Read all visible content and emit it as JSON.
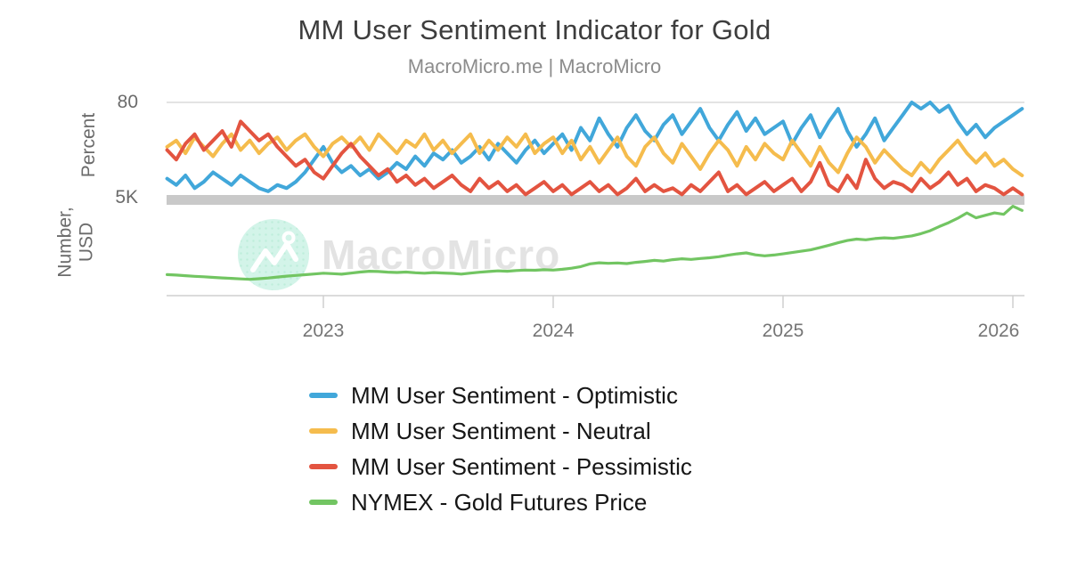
{
  "chart_data": {
    "type": "line",
    "title": "MM User Sentiment Indicator for Gold",
    "subtitle": "MacroMicro.me | MacroMicro",
    "grid": "horizontal-only",
    "legend_position": "bottom-left",
    "x_tick_labels": [
      "2023",
      "2024",
      "2025",
      "2026"
    ],
    "x_range_decimal_years": [
      2022.32,
      2026.04
    ],
    "y_axes": {
      "percent": {
        "label": "Percent",
        "shown_tick": "80",
        "tick_value": 80,
        "approx_range": [
          50,
          82
        ]
      },
      "usd": {
        "label_line1": "Number,",
        "label_line2": "USD",
        "shown_tick": "5K",
        "tick_value": 5000,
        "approx_range": [
          1000,
          5000
        ]
      }
    },
    "watermark": {
      "text": "MacroMicro",
      "logo": "macromicro-mountain-logo"
    },
    "x": [
      2022.32,
      2022.36,
      2022.4,
      2022.44,
      2022.48,
      2022.52,
      2022.56,
      2022.6,
      2022.64,
      2022.68,
      2022.72,
      2022.76,
      2022.8,
      2022.84,
      2022.88,
      2022.92,
      2022.96,
      2023.0,
      2023.04,
      2023.08,
      2023.12,
      2023.16,
      2023.2,
      2023.24,
      2023.28,
      2023.32,
      2023.36,
      2023.4,
      2023.44,
      2023.48,
      2023.52,
      2023.56,
      2023.6,
      2023.64,
      2023.68,
      2023.72,
      2023.76,
      2023.8,
      2023.84,
      2023.88,
      2023.92,
      2023.96,
      2024.0,
      2024.04,
      2024.08,
      2024.12,
      2024.16,
      2024.2,
      2024.24,
      2024.28,
      2024.32,
      2024.36,
      2024.4,
      2024.44,
      2024.48,
      2024.52,
      2024.56,
      2024.6,
      2024.64,
      2024.68,
      2024.72,
      2024.76,
      2024.8,
      2024.84,
      2024.88,
      2024.92,
      2024.96,
      2025.0,
      2025.04,
      2025.08,
      2025.12,
      2025.16,
      2025.2,
      2025.24,
      2025.28,
      2025.32,
      2025.36,
      2025.4,
      2025.44,
      2025.48,
      2025.52,
      2025.56,
      2025.6,
      2025.64,
      2025.68,
      2025.72,
      2025.76,
      2025.8,
      2025.84,
      2025.88,
      2025.92,
      2025.96,
      2026.0,
      2026.04
    ],
    "series": [
      {
        "name": "MM User Sentiment - Optimistic",
        "axis": "percent",
        "unit": "%",
        "color": "#41a7da",
        "values": [
          56,
          54,
          57,
          53,
          55,
          58,
          56,
          54,
          57,
          55,
          53,
          52,
          54,
          53,
          55,
          58,
          62,
          66,
          61,
          58,
          60,
          57,
          59,
          56,
          58,
          61,
          59,
          63,
          60,
          64,
          62,
          65,
          61,
          63,
          66,
          62,
          67,
          64,
          61,
          65,
          68,
          64,
          67,
          70,
          65,
          72,
          68,
          75,
          70,
          66,
          72,
          76,
          71,
          68,
          73,
          76,
          70,
          74,
          78,
          72,
          68,
          73,
          77,
          71,
          75,
          70,
          72,
          74,
          67,
          72,
          76,
          69,
          74,
          78,
          71,
          66,
          70,
          75,
          68,
          72,
          76,
          80,
          78,
          80,
          77,
          79,
          74,
          70,
          73,
          69,
          72,
          74,
          76,
          78
        ]
      },
      {
        "name": "MM User Sentiment - Neutral",
        "axis": "percent",
        "unit": "%",
        "color": "#f5bc4d",
        "values": [
          66,
          68,
          64,
          69,
          66,
          63,
          67,
          70,
          65,
          68,
          64,
          67,
          69,
          65,
          68,
          70,
          66,
          63,
          67,
          69,
          66,
          69,
          65,
          70,
          67,
          64,
          68,
          66,
          70,
          65,
          68,
          64,
          67,
          70,
          64,
          68,
          65,
          69,
          66,
          70,
          64,
          67,
          69,
          64,
          68,
          62,
          66,
          61,
          65,
          69,
          63,
          60,
          66,
          69,
          64,
          61,
          67,
          63,
          59,
          64,
          68,
          65,
          60,
          66,
          62,
          67,
          64,
          62,
          68,
          64,
          60,
          66,
          61,
          58,
          64,
          69,
          66,
          61,
          65,
          62,
          59,
          57,
          61,
          58,
          62,
          65,
          68,
          64,
          61,
          64,
          60,
          62,
          59,
          57
        ]
      },
      {
        "name": "MM User Sentiment - Pessimistic",
        "axis": "percent",
        "unit": "%",
        "color": "#e35440",
        "values": [
          65,
          62,
          67,
          70,
          65,
          68,
          71,
          66,
          74,
          71,
          68,
          70,
          66,
          63,
          60,
          62,
          58,
          56,
          60,
          64,
          67,
          63,
          60,
          57,
          59,
          55,
          57,
          54,
          56,
          53,
          55,
          57,
          54,
          52,
          56,
          53,
          55,
          52,
          54,
          51,
          53,
          55,
          52,
          54,
          51,
          53,
          55,
          52,
          54,
          51,
          53,
          56,
          52,
          54,
          52,
          53,
          51,
          54,
          52,
          55,
          58,
          52,
          54,
          51,
          53,
          55,
          52,
          54,
          56,
          52,
          55,
          61,
          54,
          52,
          57,
          53,
          62,
          56,
          53,
          55,
          54,
          52,
          56,
          53,
          55,
          58,
          54,
          56,
          52,
          54,
          53,
          51,
          53,
          51
        ]
      },
      {
        "name": "NYMEX - Gold Futures Price",
        "axis": "usd",
        "unit": "USD",
        "color": "#72c562",
        "values": [
          1860,
          1840,
          1815,
          1790,
          1770,
          1745,
          1725,
          1705,
          1685,
          1665,
          1690,
          1720,
          1760,
          1795,
          1825,
          1855,
          1885,
          1915,
          1900,
          1875,
          1920,
          1965,
          1995,
          1985,
          1960,
          1945,
          1965,
          1935,
          1915,
          1940,
          1925,
          1910,
          1880,
          1920,
          1955,
          1985,
          2010,
          1995,
          2025,
          2045,
          2035,
          2060,
          2045,
          2075,
          2120,
          2185,
          2300,
          2340,
          2320,
          2335,
          2310,
          2360,
          2395,
          2440,
          2410,
          2470,
          2505,
          2480,
          2515,
          2545,
          2590,
          2650,
          2705,
          2745,
          2665,
          2625,
          2660,
          2705,
          2760,
          2815,
          2870,
          2960,
          3060,
          3160,
          3250,
          3310,
          3280,
          3330,
          3360,
          3340,
          3390,
          3440,
          3530,
          3650,
          3820,
          3980,
          4160,
          4380,
          4180,
          4280,
          4380,
          4320,
          4650,
          4480
        ]
      }
    ]
  }
}
